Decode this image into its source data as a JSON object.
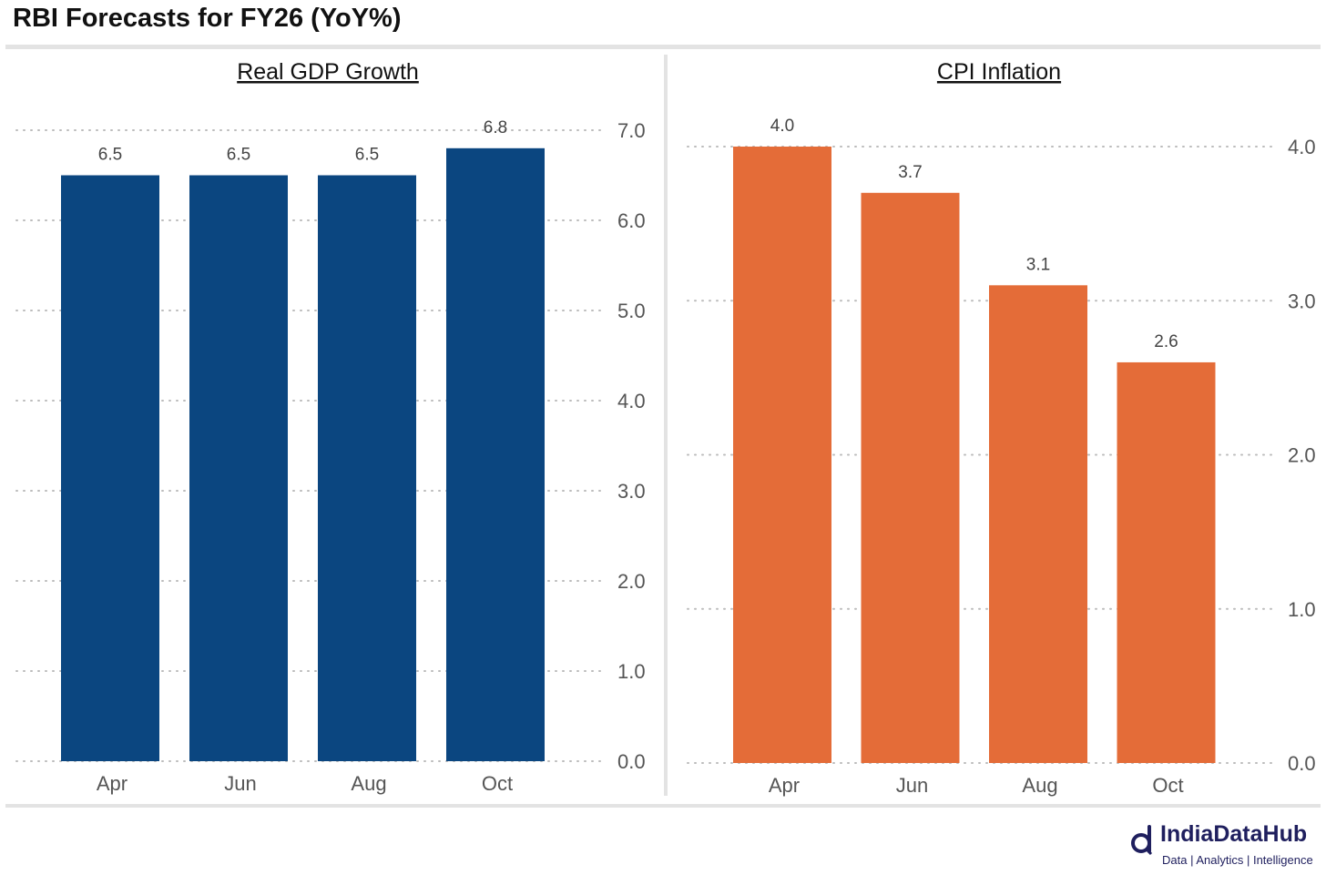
{
  "title": "RBI Forecasts for FY26 (YoY%)",
  "logo": {
    "name": "IndiaDataHub",
    "tagline": "Data | Analytics | Intelligence"
  },
  "chart_data": [
    {
      "type": "bar",
      "title": "Real GDP Growth",
      "categories": [
        "Apr",
        "Jun",
        "Aug",
        "Oct"
      ],
      "values": [
        6.5,
        6.5,
        6.5,
        6.8
      ],
      "value_labels": [
        "6.5",
        "6.5",
        "6.5",
        "6.8"
      ],
      "ylim": [
        0,
        7
      ],
      "yticks": [
        0,
        1,
        2,
        3,
        4,
        5,
        6,
        7
      ],
      "ytick_labels": [
        "0.0",
        "1.0",
        "2.0",
        "3.0",
        "4.0",
        "5.0",
        "6.0",
        "7.0"
      ],
      "color": "#0b4680",
      "grid": "dotted horizontal",
      "yaxis_position": "right"
    },
    {
      "type": "bar",
      "title": "CPI Inflation",
      "categories": [
        "Apr",
        "Jun",
        "Aug",
        "Oct"
      ],
      "values": [
        4.0,
        3.7,
        3.1,
        2.6
      ],
      "value_labels": [
        "4.0",
        "3.7",
        "3.1",
        "2.6"
      ],
      "ylim": [
        0,
        4
      ],
      "yticks": [
        0,
        1,
        2,
        3,
        4
      ],
      "ytick_labels": [
        "0.0",
        "1.0",
        "2.0",
        "3.0",
        "4.0"
      ],
      "color": "#e46c38",
      "grid": "dotted horizontal",
      "yaxis_position": "right"
    }
  ]
}
